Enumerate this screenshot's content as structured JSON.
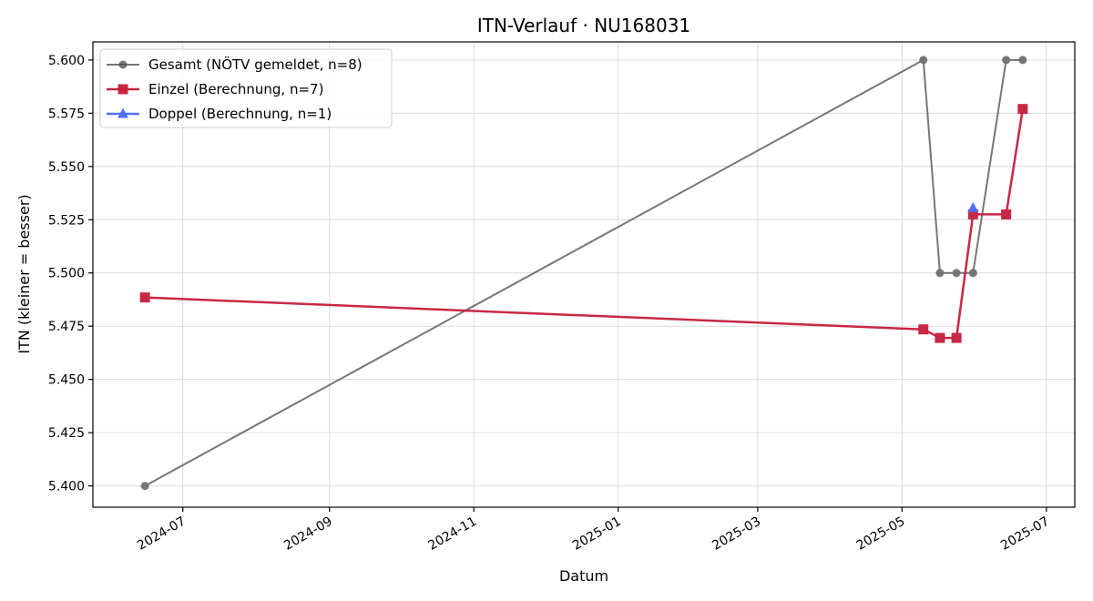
{
  "chart_data": {
    "type": "line",
    "title": "ITN-Verlauf · NU168031",
    "xlabel": "Datum",
    "ylabel": "ITN  (kleiner = besser)",
    "xlim": [
      "2024-05-24",
      "2025-07-13"
    ],
    "ylim": [
      5.39,
      5.6085
    ],
    "x_ticks": [
      "2024-07",
      "2024-09",
      "2024-11",
      "2025-01",
      "2025-03",
      "2025-05",
      "2025-07"
    ],
    "y_ticks": [
      "5.400",
      "5.425",
      "5.450",
      "5.475",
      "5.500",
      "5.525",
      "5.550",
      "5.575",
      "5.600"
    ],
    "grid": true,
    "legend_position": "upper-left",
    "series": [
      {
        "name": "Gesamt (NÖTV gemeldet, n=8)",
        "color": "#555555",
        "marker": "circle",
        "points": [
          {
            "x": "2024-06-15",
            "y": 5.4
          },
          {
            "x": "2025-05-10",
            "y": 5.6
          },
          {
            "x": "2025-05-17",
            "y": 5.5
          },
          {
            "x": "2025-05-24",
            "y": 5.5
          },
          {
            "x": "2025-05-31",
            "y": 5.5
          },
          {
            "x": "2025-05-31",
            "y": 5.5
          },
          {
            "x": "2025-06-14",
            "y": 5.6
          },
          {
            "x": "2025-06-21",
            "y": 5.6
          }
        ]
      },
      {
        "name": "Einzel (Berechnung, n=7)",
        "color": "#c41e3a",
        "marker": "square",
        "points": [
          {
            "x": "2024-06-15",
            "y": 5.4885
          },
          {
            "x": "2025-05-10",
            "y": 5.4735
          },
          {
            "x": "2025-05-17",
            "y": 5.4695
          },
          {
            "x": "2025-05-24",
            "y": 5.4695
          },
          {
            "x": "2025-05-31",
            "y": 5.5275
          },
          {
            "x": "2025-06-14",
            "y": 5.5275
          },
          {
            "x": "2025-06-21",
            "y": 5.577
          }
        ]
      },
      {
        "name": "Doppel (Berechnung, n=1)",
        "color": "#4a6cf7",
        "marker": "triangle",
        "points": [
          {
            "x": "2025-05-31",
            "y": 5.5305
          }
        ]
      }
    ]
  }
}
